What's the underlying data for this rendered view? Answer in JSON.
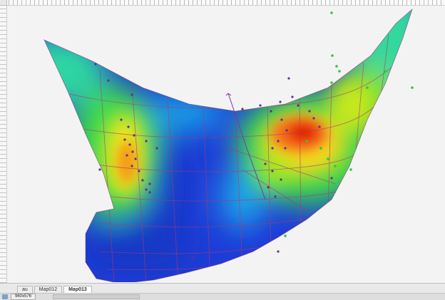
{
  "tabs": [
    {
      "label": "au",
      "active": false
    },
    {
      "label": "Map012",
      "active": false
    },
    {
      "label": "Map013",
      "active": true
    }
  ],
  "status": {
    "size_text": "960x576"
  },
  "colors": {
    "background": "#f3f3f3",
    "surface_low": "#1e3cd8",
    "surface_high": "#e31b00",
    "grid_lines": "#b0386e",
    "points_purple": "#6a2c88",
    "points_green": "#2cc83c"
  },
  "icons": {
    "status": "map-icon"
  }
}
